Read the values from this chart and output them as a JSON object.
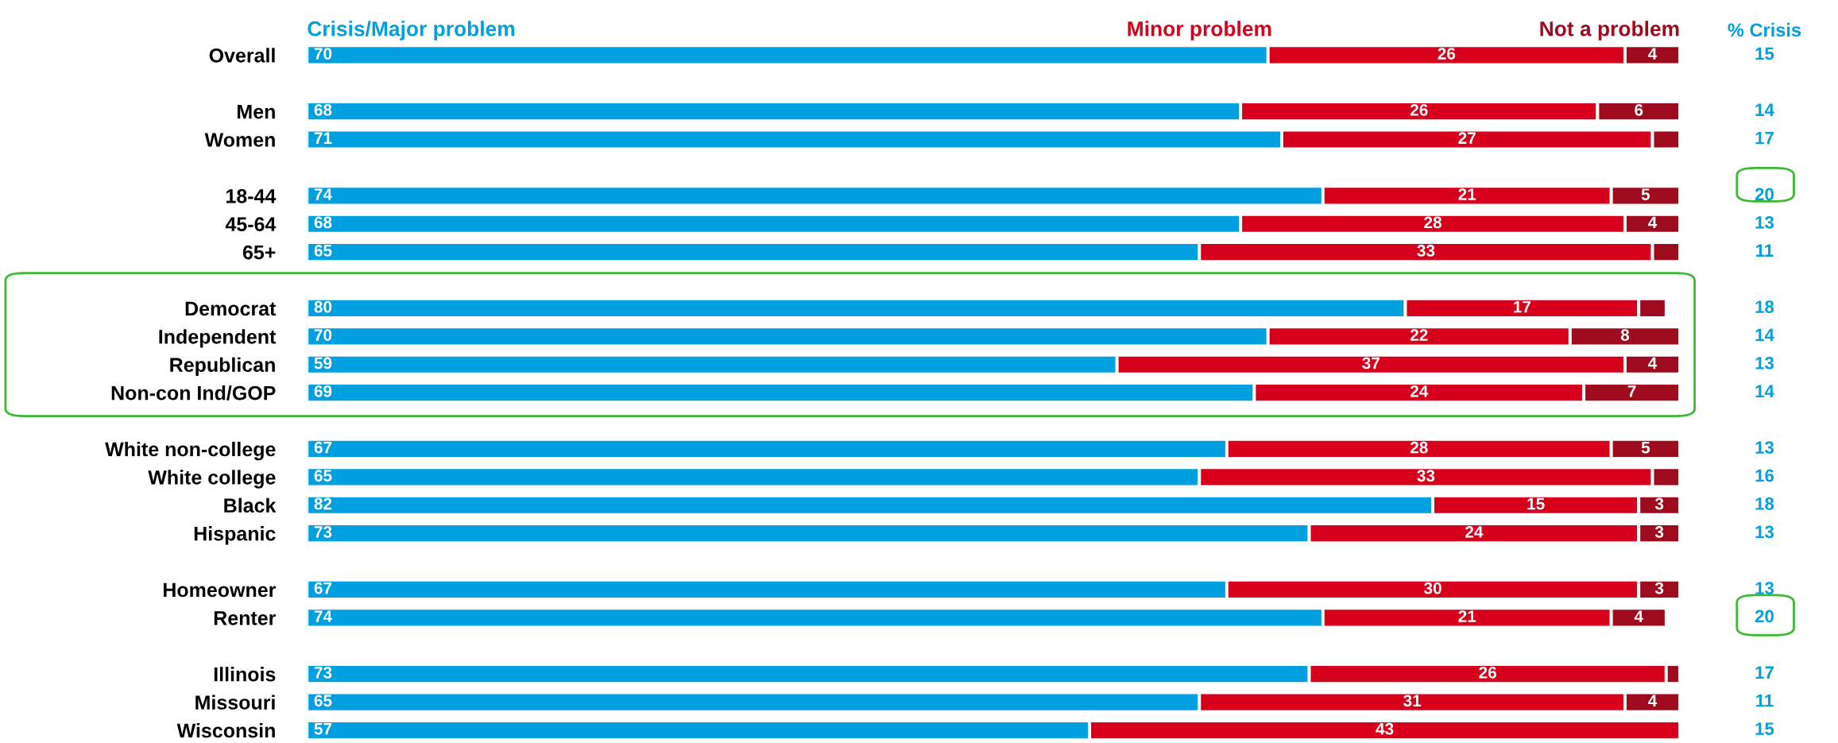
{
  "chart_data": [
    {
      "type": "bar",
      "orientation": "horizontal",
      "stacked": true,
      "legend": "top",
      "categories": [
        "Overall",
        null,
        "Men",
        "Women",
        null,
        "18-44",
        "45-64",
        "65+",
        null,
        "Democrat",
        "Independent",
        "Republican",
        "Non-con Ind/GOP",
        null,
        "White non-college",
        "White college",
        "Black",
        "Hispanic",
        null,
        "Homeowner",
        "Renter",
        null,
        "Illinois",
        "Missouri",
        "Wisconsin"
      ],
      "series": [
        {
          "name": "Crisis/Major problem",
          "color": "#009fdf",
          "values": [
            70,
            null,
            68,
            71,
            null,
            74,
            68,
            65,
            null,
            80,
            70,
            59,
            69,
            null,
            67,
            65,
            82,
            73,
            null,
            67,
            74,
            null,
            73,
            65,
            57
          ],
          "value_labels": [
            "70",
            null,
            "68",
            "71",
            null,
            "74",
            "68",
            "65",
            null,
            "80",
            "70",
            "59",
            "69",
            null,
            "67",
            "65",
            "82",
            "73",
            null,
            "67",
            "74",
            null,
            "73",
            "65",
            "57"
          ]
        },
        {
          "name": "Minor problem",
          "color": "#d6001c",
          "values": [
            26,
            null,
            26,
            27,
            null,
            21,
            28,
            33,
            null,
            17,
            22,
            37,
            24,
            null,
            28,
            33,
            15,
            24,
            null,
            30,
            21,
            null,
            26,
            31,
            43
          ],
          "value_labels": [
            "26",
            null,
            "26",
            "27",
            null,
            "21",
            "28",
            "33",
            null,
            "17",
            "22",
            "37",
            "24",
            null,
            "28",
            "33",
            "15",
            "24",
            null,
            "30",
            "21",
            null,
            "26",
            "31",
            "43"
          ]
        },
        {
          "name": "Not a problem",
          "color": "#9e0b1f",
          "values": [
            4,
            null,
            6,
            2,
            null,
            5,
            4,
            2,
            null,
            2,
            8,
            4,
            7,
            null,
            5,
            2,
            3,
            3,
            null,
            3,
            4,
            null,
            1,
            4,
            0
          ],
          "value_labels": [
            "4",
            null,
            "6",
            null,
            null,
            "5",
            "4",
            null,
            null,
            null,
            "8",
            "4",
            "7",
            null,
            "5",
            null,
            "3",
            "3",
            null,
            "3",
            "4",
            null,
            null,
            "4",
            null
          ]
        }
      ]
    },
    {
      "type": "other",
      "title": "% Crisis",
      "color": "#009fdf",
      "data_labels": true,
      "categories": [
        null,
        null,
        null,
        null,
        null,
        null,
        null,
        null,
        null,
        null,
        null,
        null,
        null,
        null,
        null,
        null,
        null,
        null,
        null,
        null,
        null,
        null,
        null,
        null,
        null
      ],
      "values": [
        15,
        null,
        14,
        17,
        null,
        20,
        13,
        11,
        null,
        18,
        14,
        13,
        14,
        null,
        13,
        16,
        18,
        13,
        null,
        13,
        20,
        null,
        17,
        11,
        15
      ]
    }
  ]
}
